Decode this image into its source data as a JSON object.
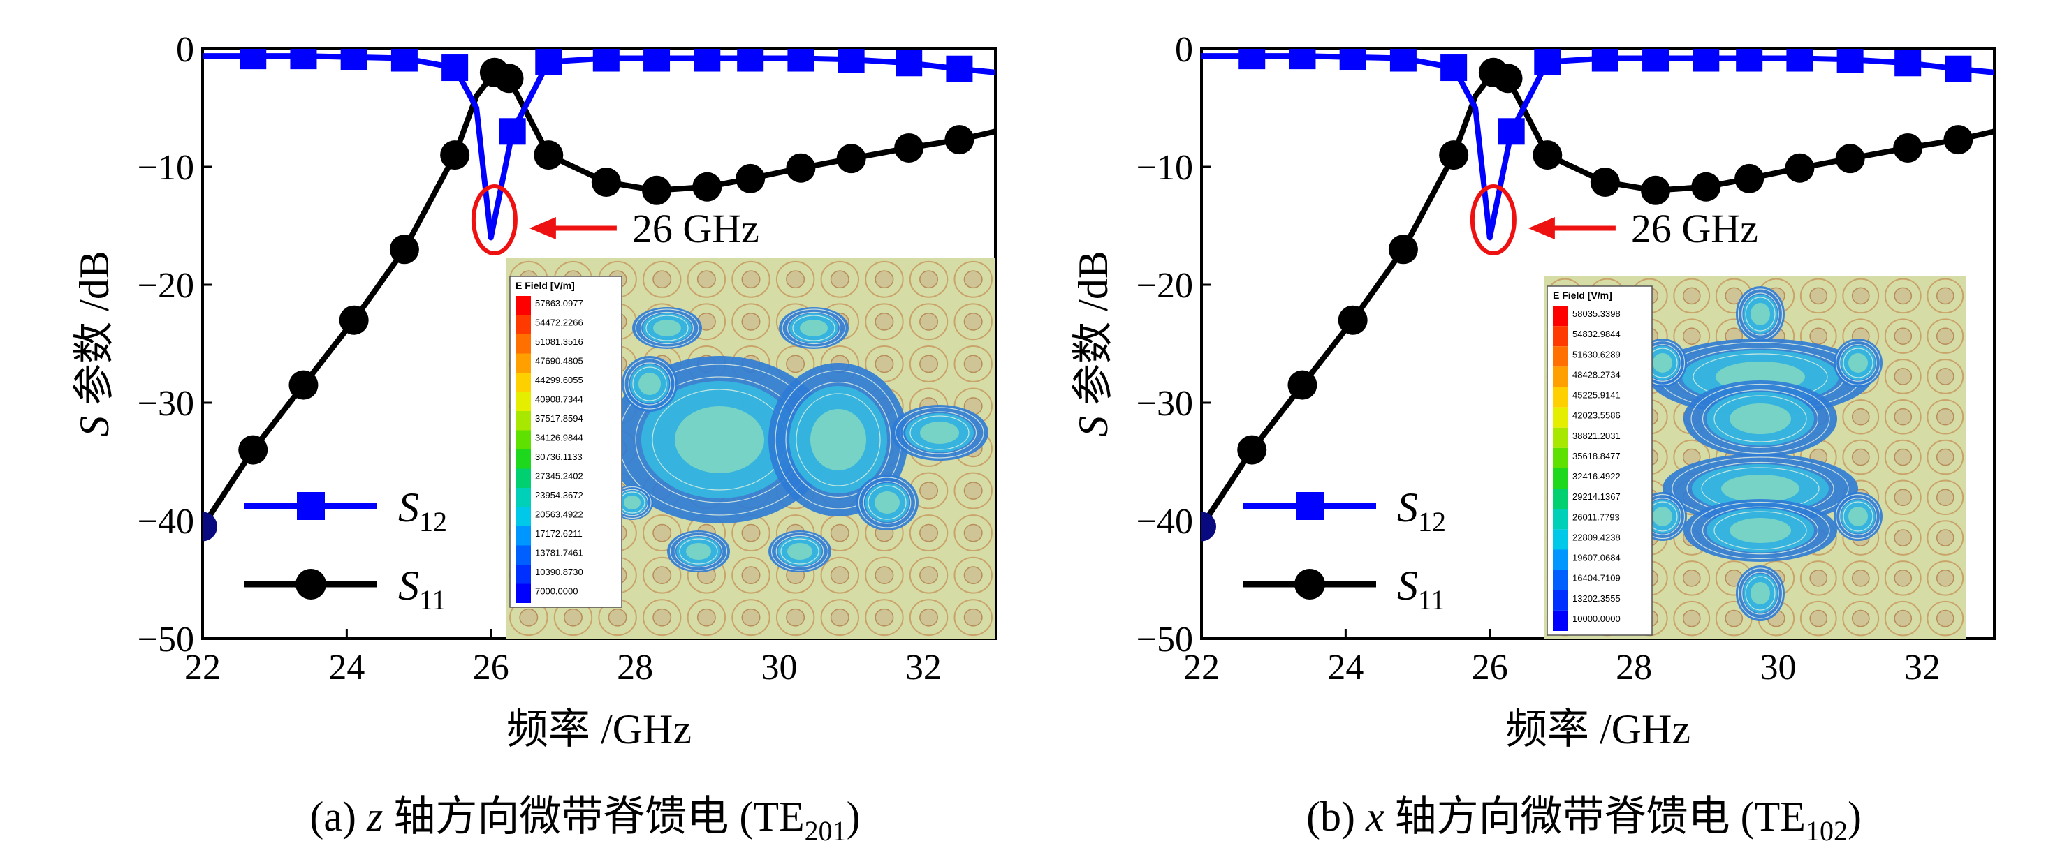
{
  "chart_data": [
    {
      "type": "line",
      "panel": "a",
      "caption": {
        "prefix": "(a) ",
        "var": "z",
        "text": " 轴方向微带脊馈电 (TE",
        "sub": "201",
        "suffix": ")"
      },
      "xlabel": "频率 /GHz",
      "ylabel": {
        "var": "S",
        "text": " 参数 /dB"
      },
      "xlim": [
        22,
        33
      ],
      "ylim": [
        -50,
        0
      ],
      "xticks": [
        "22",
        "24",
        "26",
        "28",
        "30",
        "32"
      ],
      "yticks": [
        "0",
        "−10",
        "−20",
        "−30",
        "−40",
        "−50"
      ],
      "legend": [
        {
          "var": "S",
          "sub": "12",
          "color": "#0000ff",
          "marker": "square"
        },
        {
          "var": "S",
          "sub": "11",
          "color": "#000000",
          "marker": "circle"
        }
      ],
      "annotation": {
        "text": "26 GHz",
        "x": 26.05,
        "y": -15
      },
      "series": [
        {
          "label": "S12",
          "color": "#0000ff",
          "marker": "square",
          "x": [
            22,
            22.7,
            23.4,
            24.1,
            24.8,
            25.5,
            25.8,
            26.0,
            26.3,
            26.8,
            27.6,
            28.3,
            29.0,
            29.6,
            30.3,
            31.0,
            31.8,
            32.5,
            33.0
          ],
          "y": [
            -0.6,
            -0.6,
            -0.6,
            -0.7,
            -0.8,
            -1.6,
            -5,
            -16,
            -7,
            -1.1,
            -0.8,
            -0.8,
            -0.8,
            -0.8,
            -0.8,
            -0.9,
            -1.2,
            -1.7,
            -2.0
          ],
          "marker_x": [
            22.7,
            23.4,
            24.1,
            24.8,
            25.5,
            26.3,
            26.8,
            27.6,
            28.3,
            29.0,
            29.6,
            30.3,
            31.0,
            31.8,
            32.5
          ]
        },
        {
          "label": "S11",
          "color": "#000000",
          "marker": "circle",
          "x": [
            22,
            22.7,
            23.4,
            24.1,
            24.8,
            25.5,
            25.8,
            26.05,
            26.25,
            26.8,
            27.6,
            28.3,
            29.0,
            29.6,
            30.3,
            31.0,
            31.8,
            32.5,
            33.0
          ],
          "y": [
            -40.5,
            -34,
            -28.5,
            -23,
            -17,
            -9,
            -4,
            -2,
            -2.5,
            -9,
            -11.3,
            -12,
            -11.7,
            -11,
            -10.1,
            -9.3,
            -8.4,
            -7.7,
            -7.0
          ],
          "marker_x": [
            22,
            22.7,
            23.4,
            24.1,
            24.8,
            25.5,
            26.05,
            26.25,
            26.8,
            27.6,
            28.3,
            29.0,
            29.6,
            30.3,
            31.0,
            31.8,
            32.5
          ]
        }
      ],
      "inset": {
        "title": "E Field [V/m]",
        "values": [
          "57863.0977",
          "54472.2266",
          "51081.3516",
          "47690.4805",
          "44299.6055",
          "40908.7344",
          "37517.8594",
          "34126.9844",
          "30736.1133",
          "27345.2402",
          "23954.3672",
          "20563.4922",
          "17172.6211",
          "13781.7461",
          "10390.8730",
          "7000.0000"
        ]
      }
    },
    {
      "type": "line",
      "panel": "b",
      "caption": {
        "prefix": "(b) ",
        "var": "x",
        "text": " 轴方向微带脊馈电 (TE",
        "sub": "102",
        "suffix": ")"
      },
      "xlabel": "频率 /GHz",
      "ylabel": {
        "var": "S",
        "text": " 参数 /dB"
      },
      "xlim": [
        22,
        33
      ],
      "ylim": [
        -50,
        0
      ],
      "xticks": [
        "22",
        "24",
        "26",
        "28",
        "30",
        "32"
      ],
      "yticks": [
        "0",
        "−10",
        "−20",
        "−30",
        "−40",
        "−50"
      ],
      "legend": [
        {
          "var": "S",
          "sub": "12",
          "color": "#0000ff",
          "marker": "square"
        },
        {
          "var": "S",
          "sub": "11",
          "color": "#000000",
          "marker": "circle"
        }
      ],
      "annotation": {
        "text": "26 GHz",
        "x": 26.05,
        "y": -15
      },
      "series": [
        {
          "label": "S12",
          "color": "#0000ff",
          "marker": "square",
          "x": [
            22,
            22.7,
            23.4,
            24.1,
            24.8,
            25.5,
            25.8,
            26.0,
            26.3,
            26.8,
            27.6,
            28.3,
            29.0,
            29.6,
            30.3,
            31.0,
            31.8,
            32.5,
            33.0
          ],
          "y": [
            -0.6,
            -0.6,
            -0.6,
            -0.7,
            -0.8,
            -1.6,
            -5,
            -16,
            -7,
            -1.1,
            -0.8,
            -0.8,
            -0.8,
            -0.8,
            -0.8,
            -0.9,
            -1.2,
            -1.7,
            -2.0
          ],
          "marker_x": [
            22.7,
            23.4,
            24.1,
            24.8,
            25.5,
            26.3,
            26.8,
            27.6,
            28.3,
            29.0,
            29.6,
            30.3,
            31.0,
            31.8,
            32.5
          ]
        },
        {
          "label": "S11",
          "color": "#000000",
          "marker": "circle",
          "x": [
            22,
            22.7,
            23.4,
            24.1,
            24.8,
            25.5,
            25.8,
            26.05,
            26.25,
            26.8,
            27.6,
            28.3,
            29.0,
            29.6,
            30.3,
            31.0,
            31.8,
            32.5,
            33.0
          ],
          "y": [
            -40.5,
            -34,
            -28.5,
            -23,
            -17,
            -9,
            -4,
            -2,
            -2.5,
            -9,
            -11.3,
            -12,
            -11.7,
            -11,
            -10.1,
            -9.3,
            -8.4,
            -7.7,
            -7.0
          ],
          "marker_x": [
            22,
            22.7,
            23.4,
            24.1,
            24.8,
            25.5,
            26.05,
            26.25,
            26.8,
            27.6,
            28.3,
            29.0,
            29.6,
            30.3,
            31.0,
            31.8,
            32.5
          ]
        }
      ],
      "inset": {
        "title": "E Field [V/m]",
        "values": [
          "58035.3398",
          "54832.9844",
          "51630.6289",
          "48428.2734",
          "45225.9141",
          "42023.5586",
          "38821.2031",
          "35618.8477",
          "32416.4922",
          "29214.1367",
          "26011.7793",
          "22809.4238",
          "19607.0684",
          "16404.7109",
          "13202.3555",
          "10000.0000"
        ]
      }
    }
  ],
  "colorbar_colors": [
    "#ff0000",
    "#ff3a00",
    "#ff7000",
    "#ffa000",
    "#ffd000",
    "#e6ee00",
    "#a8e800",
    "#5ee000",
    "#1ed81e",
    "#00d070",
    "#00d0b8",
    "#00c8e8",
    "#0096ff",
    "#0060ff",
    "#0030ff",
    "#0000ff"
  ]
}
